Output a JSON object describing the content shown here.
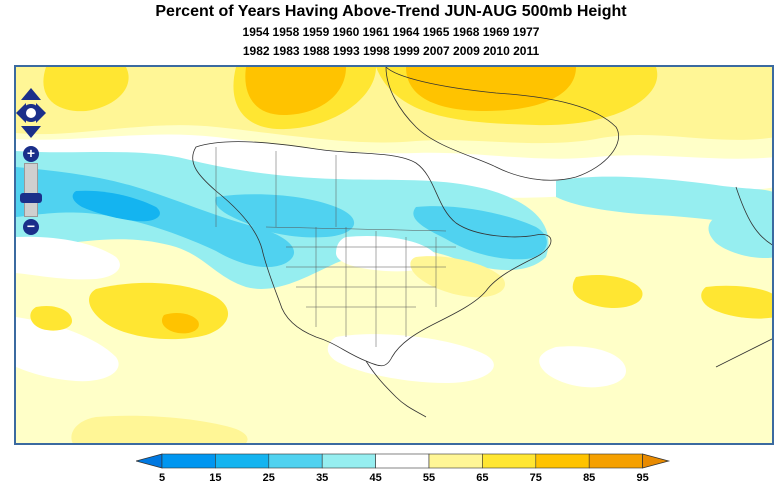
{
  "title": "Percent of Years Having Above-Trend JUN-AUG 500mb Height",
  "years_line1": "1954 1958 1959 1960 1961 1964 1965 1968 1969 1977",
  "years_line2": "1982 1983 1988 1993 1998 1999 2007 2009 2010 2011",
  "legend": {
    "ticks": [
      "5",
      "15",
      "25",
      "35",
      "45",
      "55",
      "65",
      "75",
      "85",
      "95"
    ],
    "colors": [
      "#0096f0",
      "#14b4f0",
      "#50d2f0",
      "#96eef0",
      "#ffffff",
      "#fff696",
      "#ffe632",
      "#ffc300",
      "#f5a000"
    ]
  },
  "controls": {
    "zoom_in": "+",
    "zoom_out": "−"
  }
}
